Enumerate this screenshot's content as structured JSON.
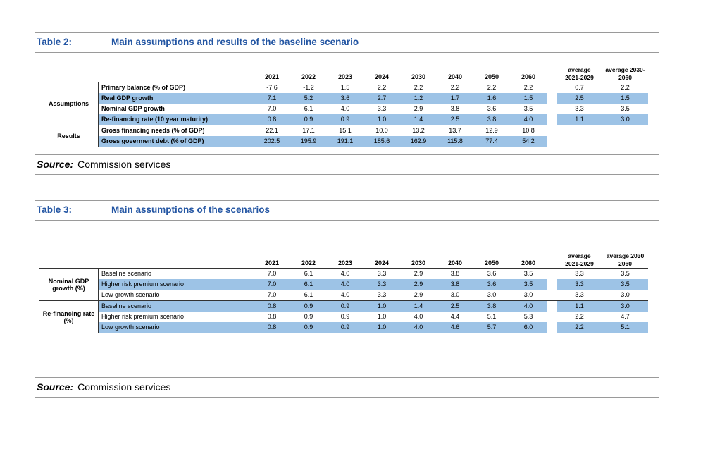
{
  "table2": {
    "label": "Table 2:",
    "title": "Main assumptions and results of the baseline scenario",
    "header": {
      "years": [
        "2021",
        "2022",
        "2023",
        "2024",
        "2030",
        "2040",
        "2050",
        "2060"
      ],
      "averages": [
        [
          "average",
          "2021-2029"
        ],
        [
          "average 2030-",
          "2060"
        ]
      ]
    },
    "groups": [
      {
        "label": "Assumptions",
        "rows": [
          {
            "label": "Primary balance (% of GDP)",
            "highlight": false,
            "values": [
              "-7.6",
              "-1.2",
              "1.5",
              "2.2",
              "2.2",
              "2.2",
              "2.2",
              "2.2"
            ],
            "avg": [
              "0.7",
              "2.2"
            ]
          },
          {
            "label": "Real GDP growth",
            "highlight": true,
            "values": [
              "7.1",
              "5.2",
              "3.6",
              "2.7",
              "1.2",
              "1.7",
              "1.6",
              "1.5"
            ],
            "avg": [
              "2.5",
              "1.5"
            ]
          },
          {
            "label": "Nominal GDP growth",
            "highlight": false,
            "values": [
              "7.0",
              "6.1",
              "4.0",
              "3.3",
              "2.9",
              "3.8",
              "3.6",
              "3.5"
            ],
            "avg": [
              "3.3",
              "3.5"
            ]
          },
          {
            "label": "Re-financing rate (10 year maturity)",
            "highlight": true,
            "values": [
              "0.8",
              "0.9",
              "0.9",
              "1.0",
              "1.4",
              "2.5",
              "3.8",
              "4.0"
            ],
            "avg": [
              "1.1",
              "3.0"
            ]
          }
        ]
      },
      {
        "label": "Results",
        "rows": [
          {
            "label": "Gross financing needs (% of GDP)",
            "highlight": false,
            "values": [
              "22.1",
              "17.1",
              "15.1",
              "10.0",
              "13.2",
              "13.7",
              "12.9",
              "10.8"
            ],
            "avg": [
              "",
              ""
            ]
          },
          {
            "label": "Gross goverment debt (% of GDP)",
            "highlight": true,
            "values": [
              "202.5",
              "195.9",
              "191.1",
              "185.6",
              "162.9",
              "115.8",
              "77.4",
              "54.2"
            ],
            "avg": [
              "",
              ""
            ]
          }
        ]
      }
    ],
    "source_label": "Source:",
    "source_text": "Commission services"
  },
  "table3": {
    "label": "Table 3:",
    "title": "Main assumptions of the scenarios",
    "header": {
      "years": [
        "2021",
        "2022",
        "2023",
        "2024",
        "2030",
        "2040",
        "2050",
        "2060"
      ],
      "averages": [
        [
          "average",
          "2021-2029"
        ],
        [
          "average 2030",
          "2060"
        ]
      ]
    },
    "groups": [
      {
        "label": "Nominal GDP growth (%)",
        "rows": [
          {
            "label": "Baseline scenario",
            "highlight": false,
            "values": [
              "7.0",
              "6.1",
              "4.0",
              "3.3",
              "2.9",
              "3.8",
              "3.6",
              "3.5"
            ],
            "avg": [
              "3.3",
              "3.5"
            ]
          },
          {
            "label": "Higher risk premium scenario",
            "highlight": true,
            "values": [
              "7.0",
              "6.1",
              "4.0",
              "3.3",
              "2.9",
              "3.8",
              "3.6",
              "3.5"
            ],
            "avg": [
              "3.3",
              "3.5"
            ]
          },
          {
            "label": "Low growth scenario",
            "highlight": false,
            "values": [
              "7.0",
              "6.1",
              "4.0",
              "3.3",
              "2.9",
              "3.0",
              "3.0",
              "3.0"
            ],
            "avg": [
              "3.3",
              "3.0"
            ]
          }
        ]
      },
      {
        "label": "Re-financing rate (%)",
        "rows": [
          {
            "label": "Baseline scenario",
            "highlight": true,
            "values": [
              "0.8",
              "0.9",
              "0.9",
              "1.0",
              "1.4",
              "2.5",
              "3.8",
              "4.0"
            ],
            "avg": [
              "1.1",
              "3.0"
            ]
          },
          {
            "label": "Higher risk premium scenario",
            "highlight": false,
            "values": [
              "0.8",
              "0.9",
              "0.9",
              "1.0",
              "4.0",
              "4.4",
              "5.1",
              "5.3"
            ],
            "avg": [
              "2.2",
              "4.7"
            ]
          },
          {
            "label": "Low growth scenario",
            "highlight": true,
            "values": [
              "0.8",
              "0.9",
              "0.9",
              "1.0",
              "4.0",
              "4.6",
              "5.7",
              "6.0"
            ],
            "avg": [
              "2.2",
              "5.1"
            ]
          }
        ]
      }
    ],
    "source_label": "Source:",
    "source_text": "Commission services"
  },
  "colors": {
    "highlight_blue": "#9dc3e6",
    "title_blue": "#2456a3"
  }
}
